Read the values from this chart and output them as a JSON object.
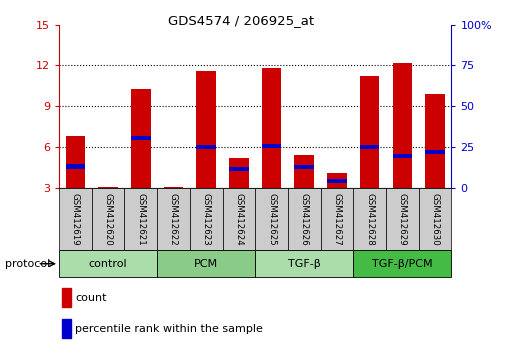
{
  "title": "GDS4574 / 206925_at",
  "samples": [
    "GSM412619",
    "GSM412620",
    "GSM412621",
    "GSM412622",
    "GSM412623",
    "GSM412624",
    "GSM412625",
    "GSM412626",
    "GSM412627",
    "GSM412628",
    "GSM412629",
    "GSM412630"
  ],
  "count_values": [
    6.8,
    3.05,
    10.3,
    3.05,
    11.6,
    5.2,
    11.8,
    5.4,
    4.1,
    11.2,
    12.2,
    9.9
  ],
  "percentile_bottoms": [
    4.4,
    0,
    6.5,
    0,
    5.85,
    4.2,
    5.9,
    4.35,
    3.35,
    5.85,
    5.15,
    5.45
  ],
  "percentile_heights": [
    0.32,
    0,
    0.32,
    0,
    0.32,
    0.32,
    0.32,
    0.32,
    0.32,
    0.32,
    0.32,
    0.32
  ],
  "ylim_left": [
    3,
    15
  ],
  "ylim_right": [
    0,
    100
  ],
  "yticks_left": [
    3,
    6,
    9,
    12,
    15
  ],
  "yticks_right": [
    0,
    25,
    50,
    75,
    100
  ],
  "ytick_labels_right": [
    "0",
    "25",
    "50",
    "75",
    "100%"
  ],
  "red_color": "#CC0000",
  "blue_color": "#0000CC",
  "groups": [
    {
      "label": "control",
      "start": 0,
      "end": 3
    },
    {
      "label": "PCM",
      "start": 3,
      "end": 6
    },
    {
      "label": "TGF-β",
      "start": 6,
      "end": 9
    },
    {
      "label": "TGF-β/PCM",
      "start": 9,
      "end": 12
    }
  ],
  "group_colors": [
    "#aaddaa",
    "#88cc88",
    "#aaddaa",
    "#44bb44"
  ],
  "bar_width": 0.6,
  "sample_box_color": "#cccccc",
  "protocol_label": "protocol",
  "legend_count": "count",
  "legend_percentile": "percentile rank within the sample"
}
